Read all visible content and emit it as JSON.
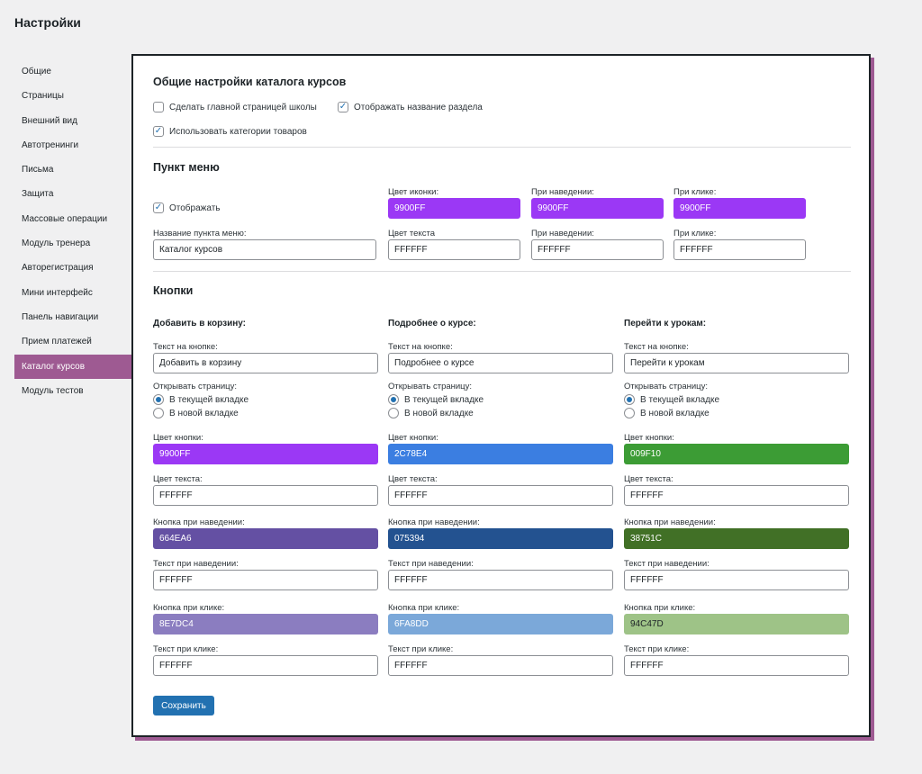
{
  "page": {
    "title": "Настройки"
  },
  "sidebar": {
    "items": [
      {
        "label": "Общие"
      },
      {
        "label": "Страницы"
      },
      {
        "label": "Внешний вид"
      },
      {
        "label": "Автотренинги"
      },
      {
        "label": "Письма"
      },
      {
        "label": "Защита"
      },
      {
        "label": "Массовые операции"
      },
      {
        "label": "Модуль тренера"
      },
      {
        "label": "Авторегистрация"
      },
      {
        "label": "Мини интерфейс"
      },
      {
        "label": "Панель навигации"
      },
      {
        "label": "Прием платежей"
      },
      {
        "label": "Каталог курсов",
        "active": true
      },
      {
        "label": "Модуль тестов"
      }
    ]
  },
  "general": {
    "title": "Общие настройки каталога курсов",
    "make_home": {
      "label": "Сделать главной страницей школы",
      "checked": false
    },
    "show_section_name": {
      "label": "Отображать название раздела",
      "checked": true
    },
    "use_categories": {
      "label": "Использовать категории товаров",
      "checked": true
    }
  },
  "menu": {
    "title": "Пункт меню",
    "display": {
      "label": "Отображать",
      "checked": true
    },
    "name_label": "Название пункта меню:",
    "name_value": "Каталог курсов",
    "icon_color_label": "Цвет иконки:",
    "icon_color": "9900FF",
    "icon_hover_label": "При наведении:",
    "icon_hover": "9900FF",
    "icon_click_label": "При клике:",
    "icon_click": "9900FF",
    "text_color_label": "Цвет текста",
    "text_color": "FFFFFF",
    "text_hover_label": "При наведении:",
    "text_hover": "FFFFFF",
    "text_click_label": "При клике:",
    "text_click": "FFFFFF"
  },
  "buttons": {
    "title": "Кнопки",
    "labels": {
      "text": "Текст на кнопке:",
      "open_page": "Открывать страницу:",
      "current_tab": "В текущей вкладке",
      "new_tab": "В новой вкладке",
      "button_color": "Цвет кнопки:",
      "text_color": "Цвет текста:",
      "hover_button": "Кнопка при наведении:",
      "hover_text": "Текст при наведении:",
      "click_button": "Кнопка при клике:",
      "click_text": "Текст при клике:"
    },
    "columns": [
      {
        "heading": "Добавить в корзину:",
        "text": "Добавить в корзину",
        "open": "current",
        "button_color": "9900FF",
        "text_color": "FFFFFF",
        "hover_button": "664EA6",
        "hover_text": "FFFFFF",
        "click_button": "8E7DC4",
        "click_text": "FFFFFF"
      },
      {
        "heading": "Подробнее о курсе:",
        "text": "Подробнее о курсе",
        "open": "current",
        "button_color": "2C78E4",
        "text_color": "FFFFFF",
        "hover_button": "075394",
        "hover_text": "FFFFFF",
        "click_button": "6FA8DD",
        "click_text": "FFFFFF"
      },
      {
        "heading": "Перейти к урокам:",
        "text": "Перейти к урокам",
        "open": "current",
        "button_color": "009F10",
        "text_color": "FFFFFF",
        "hover_button": "38751C",
        "hover_text": "FFFFFF",
        "click_button": "94C47D",
        "click_text": "FFFFFF"
      }
    ]
  },
  "save_label": "Сохранить",
  "colors": {
    "accent": "#9e5a92",
    "primary_button": "#2271b1",
    "swatch_9900FF": "#9b38f5",
    "swatch_2C78E4": "#3b7ee1",
    "swatch_009F10": "#3c9c35",
    "swatch_664EA6": "#6450a3",
    "swatch_075394": "#235290",
    "swatch_38751C": "#417026",
    "swatch_8E7DC4": "#8b7dc0",
    "swatch_6FA8DD": "#7ba8d9",
    "swatch_94C47D": "#9ec387"
  }
}
